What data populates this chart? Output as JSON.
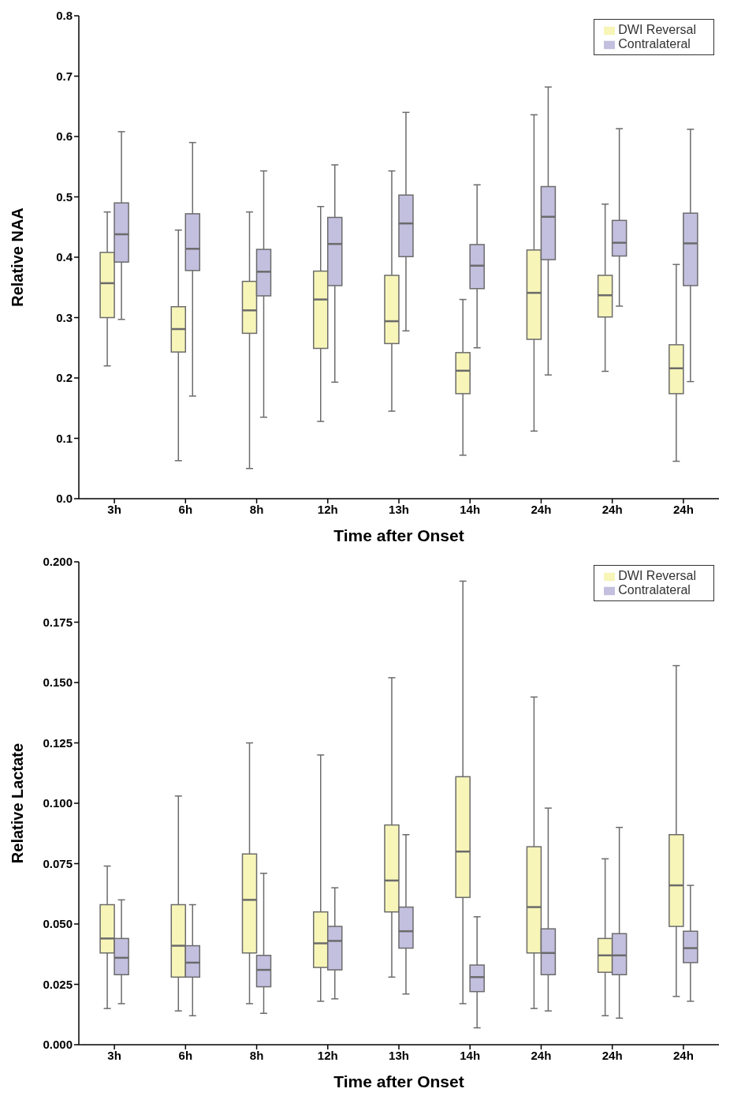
{
  "chart_data": [
    {
      "type": "box",
      "xlabel": "Time after Onset",
      "ylabel": "Relative NAA",
      "legend": "top right",
      "categories": [
        "3h",
        "6h",
        "8h",
        "12h",
        "13h",
        "14h",
        "24h",
        "24h",
        "24h"
      ],
      "ylim": [
        0,
        0.8
      ],
      "yticks": [
        {
          "value": 0,
          "label": "0.0"
        },
        0.1,
        0.2,
        0.3,
        0.4,
        0.5,
        0.6,
        0.7,
        0.8
      ],
      "series": [
        {
          "name": "DWI Reversal",
          "color": "#f7f5b8",
          "boxes": [
            {
              "low": 0.22,
              "q1": 0.3,
              "median": 0.357,
              "q3": 0.408,
              "high": 0.475
            },
            {
              "low": 0.063,
              "q1": 0.243,
              "median": 0.281,
              "q3": 0.318,
              "high": 0.445
            },
            {
              "low": 0.05,
              "q1": 0.274,
              "median": 0.312,
              "q3": 0.36,
              "high": 0.475
            },
            {
              "low": 0.128,
              "q1": 0.249,
              "median": 0.33,
              "q3": 0.377,
              "high": 0.484
            },
            {
              "low": 0.145,
              "q1": 0.257,
              "median": 0.294,
              "q3": 0.37,
              "high": 0.543
            },
            {
              "low": 0.072,
              "q1": 0.174,
              "median": 0.212,
              "q3": 0.242,
              "high": 0.33
            },
            {
              "low": 0.112,
              "q1": 0.264,
              "median": 0.341,
              "q3": 0.412,
              "high": 0.636
            },
            {
              "low": 0.211,
              "q1": 0.301,
              "median": 0.337,
              "q3": 0.37,
              "high": 0.488
            },
            {
              "low": 0.062,
              "q1": 0.174,
              "median": 0.216,
              "q3": 0.255,
              "high": 0.388
            }
          ]
        },
        {
          "name": "Contralateral",
          "color": "#c3bfdf",
          "boxes": [
            {
              "low": 0.297,
              "q1": 0.392,
              "median": 0.438,
              "q3": 0.49,
              "high": 0.608
            },
            {
              "low": 0.17,
              "q1": 0.378,
              "median": 0.414,
              "q3": 0.472,
              "high": 0.59
            },
            {
              "low": 0.135,
              "q1": 0.336,
              "median": 0.376,
              "q3": 0.413,
              "high": 0.543
            },
            {
              "low": 0.193,
              "q1": 0.353,
              "median": 0.422,
              "q3": 0.466,
              "high": 0.553
            },
            {
              "low": 0.278,
              "q1": 0.401,
              "median": 0.456,
              "q3": 0.503,
              "high": 0.64
            },
            {
              "low": 0.25,
              "q1": 0.348,
              "median": 0.386,
              "q3": 0.421,
              "high": 0.52
            },
            {
              "low": 0.205,
              "q1": 0.396,
              "median": 0.467,
              "q3": 0.517,
              "high": 0.682
            },
            {
              "low": 0.319,
              "q1": 0.402,
              "median": 0.424,
              "q3": 0.461,
              "high": 0.613
            },
            {
              "low": 0.194,
              "q1": 0.353,
              "median": 0.423,
              "q3": 0.473,
              "high": 0.612
            }
          ]
        }
      ]
    },
    {
      "type": "box",
      "xlabel": "Time after Onset",
      "ylabel": "Relative Lactate",
      "legend": "top right",
      "categories": [
        "3h",
        "6h",
        "8h",
        "12h",
        "13h",
        "14h",
        "24h",
        "24h",
        "24h"
      ],
      "ylim": [
        0,
        0.2
      ],
      "yticks": [
        {
          "value": 0,
          "label": "0.000"
        },
        {
          "value": 0.025,
          "label": "0.025"
        },
        {
          "value": 0.05,
          "label": "0.050"
        },
        {
          "value": 0.075,
          "label": "0.075"
        },
        {
          "value": 0.1,
          "label": "0.100"
        },
        {
          "value": 0.125,
          "label": "0.125"
        },
        {
          "value": 0.15,
          "label": "0.150"
        },
        {
          "value": 0.175,
          "label": "0.175"
        },
        {
          "value": 0.2,
          "label": "0.200"
        }
      ],
      "series": [
        {
          "name": "DWI Reversal",
          "color": "#f7f5b8",
          "boxes": [
            {
              "low": 0.015,
              "q1": 0.038,
              "median": 0.044,
              "q3": 0.058,
              "high": 0.074
            },
            {
              "low": 0.014,
              "q1": 0.028,
              "median": 0.041,
              "q3": 0.058,
              "high": 0.103
            },
            {
              "low": 0.017,
              "q1": 0.038,
              "median": 0.06,
              "q3": 0.079,
              "high": 0.125
            },
            {
              "low": 0.018,
              "q1": 0.032,
              "median": 0.042,
              "q3": 0.055,
              "high": 0.12
            },
            {
              "low": 0.028,
              "q1": 0.055,
              "median": 0.068,
              "q3": 0.091,
              "high": 0.152
            },
            {
              "low": 0.017,
              "q1": 0.061,
              "median": 0.08,
              "q3": 0.111,
              "high": 0.192
            },
            {
              "low": 0.015,
              "q1": 0.038,
              "median": 0.057,
              "q3": 0.082,
              "high": 0.144
            },
            {
              "low": 0.012,
              "q1": 0.03,
              "median": 0.037,
              "q3": 0.044,
              "high": 0.077
            },
            {
              "low": 0.02,
              "q1": 0.049,
              "median": 0.066,
              "q3": 0.087,
              "high": 0.157
            }
          ]
        },
        {
          "name": "Contralateral",
          "color": "#c3bfdf",
          "boxes": [
            {
              "low": 0.017,
              "q1": 0.029,
              "median": 0.036,
              "q3": 0.044,
              "high": 0.06
            },
            {
              "low": 0.012,
              "q1": 0.028,
              "median": 0.034,
              "q3": 0.041,
              "high": 0.058
            },
            {
              "low": 0.013,
              "q1": 0.024,
              "median": 0.031,
              "q3": 0.037,
              "high": 0.071
            },
            {
              "low": 0.019,
              "q1": 0.031,
              "median": 0.043,
              "q3": 0.049,
              "high": 0.065
            },
            {
              "low": 0.021,
              "q1": 0.04,
              "median": 0.047,
              "q3": 0.057,
              "high": 0.087
            },
            {
              "low": 0.007,
              "q1": 0.022,
              "median": 0.028,
              "q3": 0.033,
              "high": 0.053
            },
            {
              "low": 0.014,
              "q1": 0.029,
              "median": 0.038,
              "q3": 0.048,
              "high": 0.098
            },
            {
              "low": 0.011,
              "q1": 0.029,
              "median": 0.037,
              "q3": 0.046,
              "high": 0.09
            },
            {
              "low": 0.018,
              "q1": 0.034,
              "median": 0.04,
              "q3": 0.047,
              "high": 0.066
            }
          ]
        }
      ]
    }
  ]
}
